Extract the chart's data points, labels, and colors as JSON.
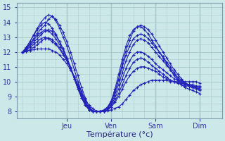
{
  "background_color": "#cce8e8",
  "grid_color": "#aacccc",
  "line_color": "#2222bb",
  "marker": "+",
  "markersize": 3,
  "linewidth": 0.8,
  "xlabel": "Température (°c)",
  "xlabel_fontsize": 8,
  "day_labels": [
    "Jeu",
    "Ven",
    "Sam",
    "Dim"
  ],
  "day_positions": [
    24,
    48,
    72,
    96
  ],
  "yticks": [
    8,
    9,
    10,
    11,
    12,
    13,
    14,
    15
  ],
  "ylim": [
    7.5,
    15.3
  ],
  "xlim": [
    -3,
    108
  ],
  "series": [
    [
      12.0,
      12.05,
      12.1,
      12.15,
      12.2,
      12.2,
      12.2,
      12.2,
      12.1,
      12.0,
      11.8,
      11.5,
      11.2,
      10.8,
      10.3,
      9.8,
      9.3,
      8.8,
      8.4,
      8.2,
      8.0,
      8.0,
      8.0,
      8.05,
      8.1,
      8.2,
      8.3,
      8.5,
      8.8,
      9.1,
      9.4,
      9.6,
      9.8,
      9.9,
      10.0,
      10.1,
      10.1,
      10.1,
      10.1,
      10.1,
      10.0,
      10.0,
      10.0,
      10.0,
      10.0,
      10.0,
      10.0,
      10.0,
      9.9
    ],
    [
      12.0,
      12.1,
      12.3,
      12.5,
      12.7,
      12.9,
      13.0,
      12.9,
      12.7,
      12.5,
      12.2,
      11.8,
      11.4,
      10.9,
      10.3,
      9.7,
      9.1,
      8.6,
      8.2,
      8.0,
      8.0,
      8.0,
      8.0,
      8.1,
      8.3,
      8.6,
      9.0,
      9.5,
      10.0,
      10.4,
      10.7,
      10.9,
      11.0,
      11.0,
      10.9,
      10.8,
      10.7,
      10.5,
      10.3,
      10.2,
      10.1,
      10.0,
      9.9,
      9.9,
      9.8,
      9.8,
      9.8,
      9.7,
      9.7
    ],
    [
      12.0,
      12.2,
      12.5,
      12.8,
      13.1,
      13.3,
      13.5,
      13.4,
      13.2,
      12.9,
      12.5,
      12.1,
      11.6,
      11.0,
      10.3,
      9.6,
      9.0,
      8.5,
      8.1,
      8.0,
      8.0,
      8.0,
      8.0,
      8.1,
      8.4,
      8.9,
      9.5,
      10.2,
      10.9,
      11.4,
      11.8,
      12.0,
      12.0,
      11.9,
      11.7,
      11.5,
      11.2,
      11.0,
      10.8,
      10.6,
      10.4,
      10.2,
      10.1,
      10.0,
      9.9,
      9.8,
      9.7,
      9.7,
      9.6
    ],
    [
      12.0,
      12.3,
      12.7,
      13.1,
      13.5,
      13.8,
      14.0,
      13.9,
      13.6,
      13.2,
      12.7,
      12.2,
      11.6,
      10.9,
      10.2,
      9.5,
      8.9,
      8.4,
      8.1,
      8.0,
      8.0,
      8.0,
      8.1,
      8.3,
      8.7,
      9.3,
      10.1,
      11.0,
      11.8,
      12.4,
      12.9,
      13.1,
      13.2,
      13.1,
      12.9,
      12.6,
      12.3,
      12.0,
      11.7,
      11.3,
      11.0,
      10.6,
      10.3,
      10.1,
      9.9,
      9.8,
      9.7,
      9.6,
      9.5
    ],
    [
      12.0,
      12.05,
      12.15,
      12.3,
      12.5,
      12.7,
      12.9,
      12.95,
      12.85,
      12.6,
      12.3,
      11.9,
      11.5,
      10.9,
      10.3,
      9.7,
      9.1,
      8.6,
      8.2,
      8.0,
      8.0,
      8.0,
      8.0,
      8.1,
      8.3,
      8.7,
      9.2,
      9.8,
      10.4,
      10.9,
      11.3,
      11.5,
      11.6,
      11.5,
      11.3,
      11.1,
      10.9,
      10.7,
      10.5,
      10.3,
      10.1,
      10.0,
      9.9,
      9.8,
      9.7,
      9.7,
      9.6,
      9.6,
      9.5
    ],
    [
      12.0,
      12.15,
      12.4,
      12.65,
      12.9,
      13.15,
      13.4,
      13.5,
      13.4,
      13.1,
      12.7,
      12.2,
      11.6,
      10.9,
      10.2,
      9.5,
      8.9,
      8.4,
      8.1,
      8.0,
      8.0,
      8.0,
      8.05,
      8.2,
      8.5,
      9.1,
      9.8,
      10.6,
      11.4,
      12.0,
      12.5,
      12.8,
      12.9,
      12.8,
      12.6,
      12.3,
      12.0,
      11.7,
      11.4,
      11.1,
      10.8,
      10.5,
      10.2,
      10.0,
      9.8,
      9.7,
      9.6,
      9.6,
      9.5
    ],
    [
      12.0,
      12.25,
      12.55,
      12.9,
      13.25,
      13.55,
      13.8,
      14.2,
      14.4,
      14.2,
      13.8,
      13.3,
      12.7,
      12.0,
      11.2,
      10.4,
      9.6,
      8.9,
      8.3,
      8.05,
      8.0,
      8.0,
      8.05,
      8.2,
      8.6,
      9.3,
      10.2,
      11.2,
      12.1,
      12.8,
      13.4,
      13.7,
      13.8,
      13.7,
      13.5,
      13.2,
      12.8,
      12.4,
      12.0,
      11.6,
      11.2,
      10.8,
      10.5,
      10.2,
      9.9,
      9.7,
      9.6,
      9.5,
      9.4
    ],
    [
      12.0,
      12.3,
      12.7,
      13.15,
      13.6,
      14.0,
      14.3,
      14.5,
      14.4,
      14.1,
      13.6,
      13.0,
      12.4,
      11.6,
      10.8,
      10.0,
      9.3,
      8.7,
      8.2,
      8.0,
      8.0,
      8.0,
      8.05,
      8.25,
      8.7,
      9.5,
      10.5,
      11.5,
      12.4,
      13.1,
      13.5,
      13.7,
      13.7,
      13.5,
      13.2,
      12.8,
      12.4,
      12.0,
      11.6,
      11.2,
      10.8,
      10.4,
      10.1,
      9.8,
      9.6,
      9.5,
      9.4,
      9.3,
      9.2
    ]
  ]
}
